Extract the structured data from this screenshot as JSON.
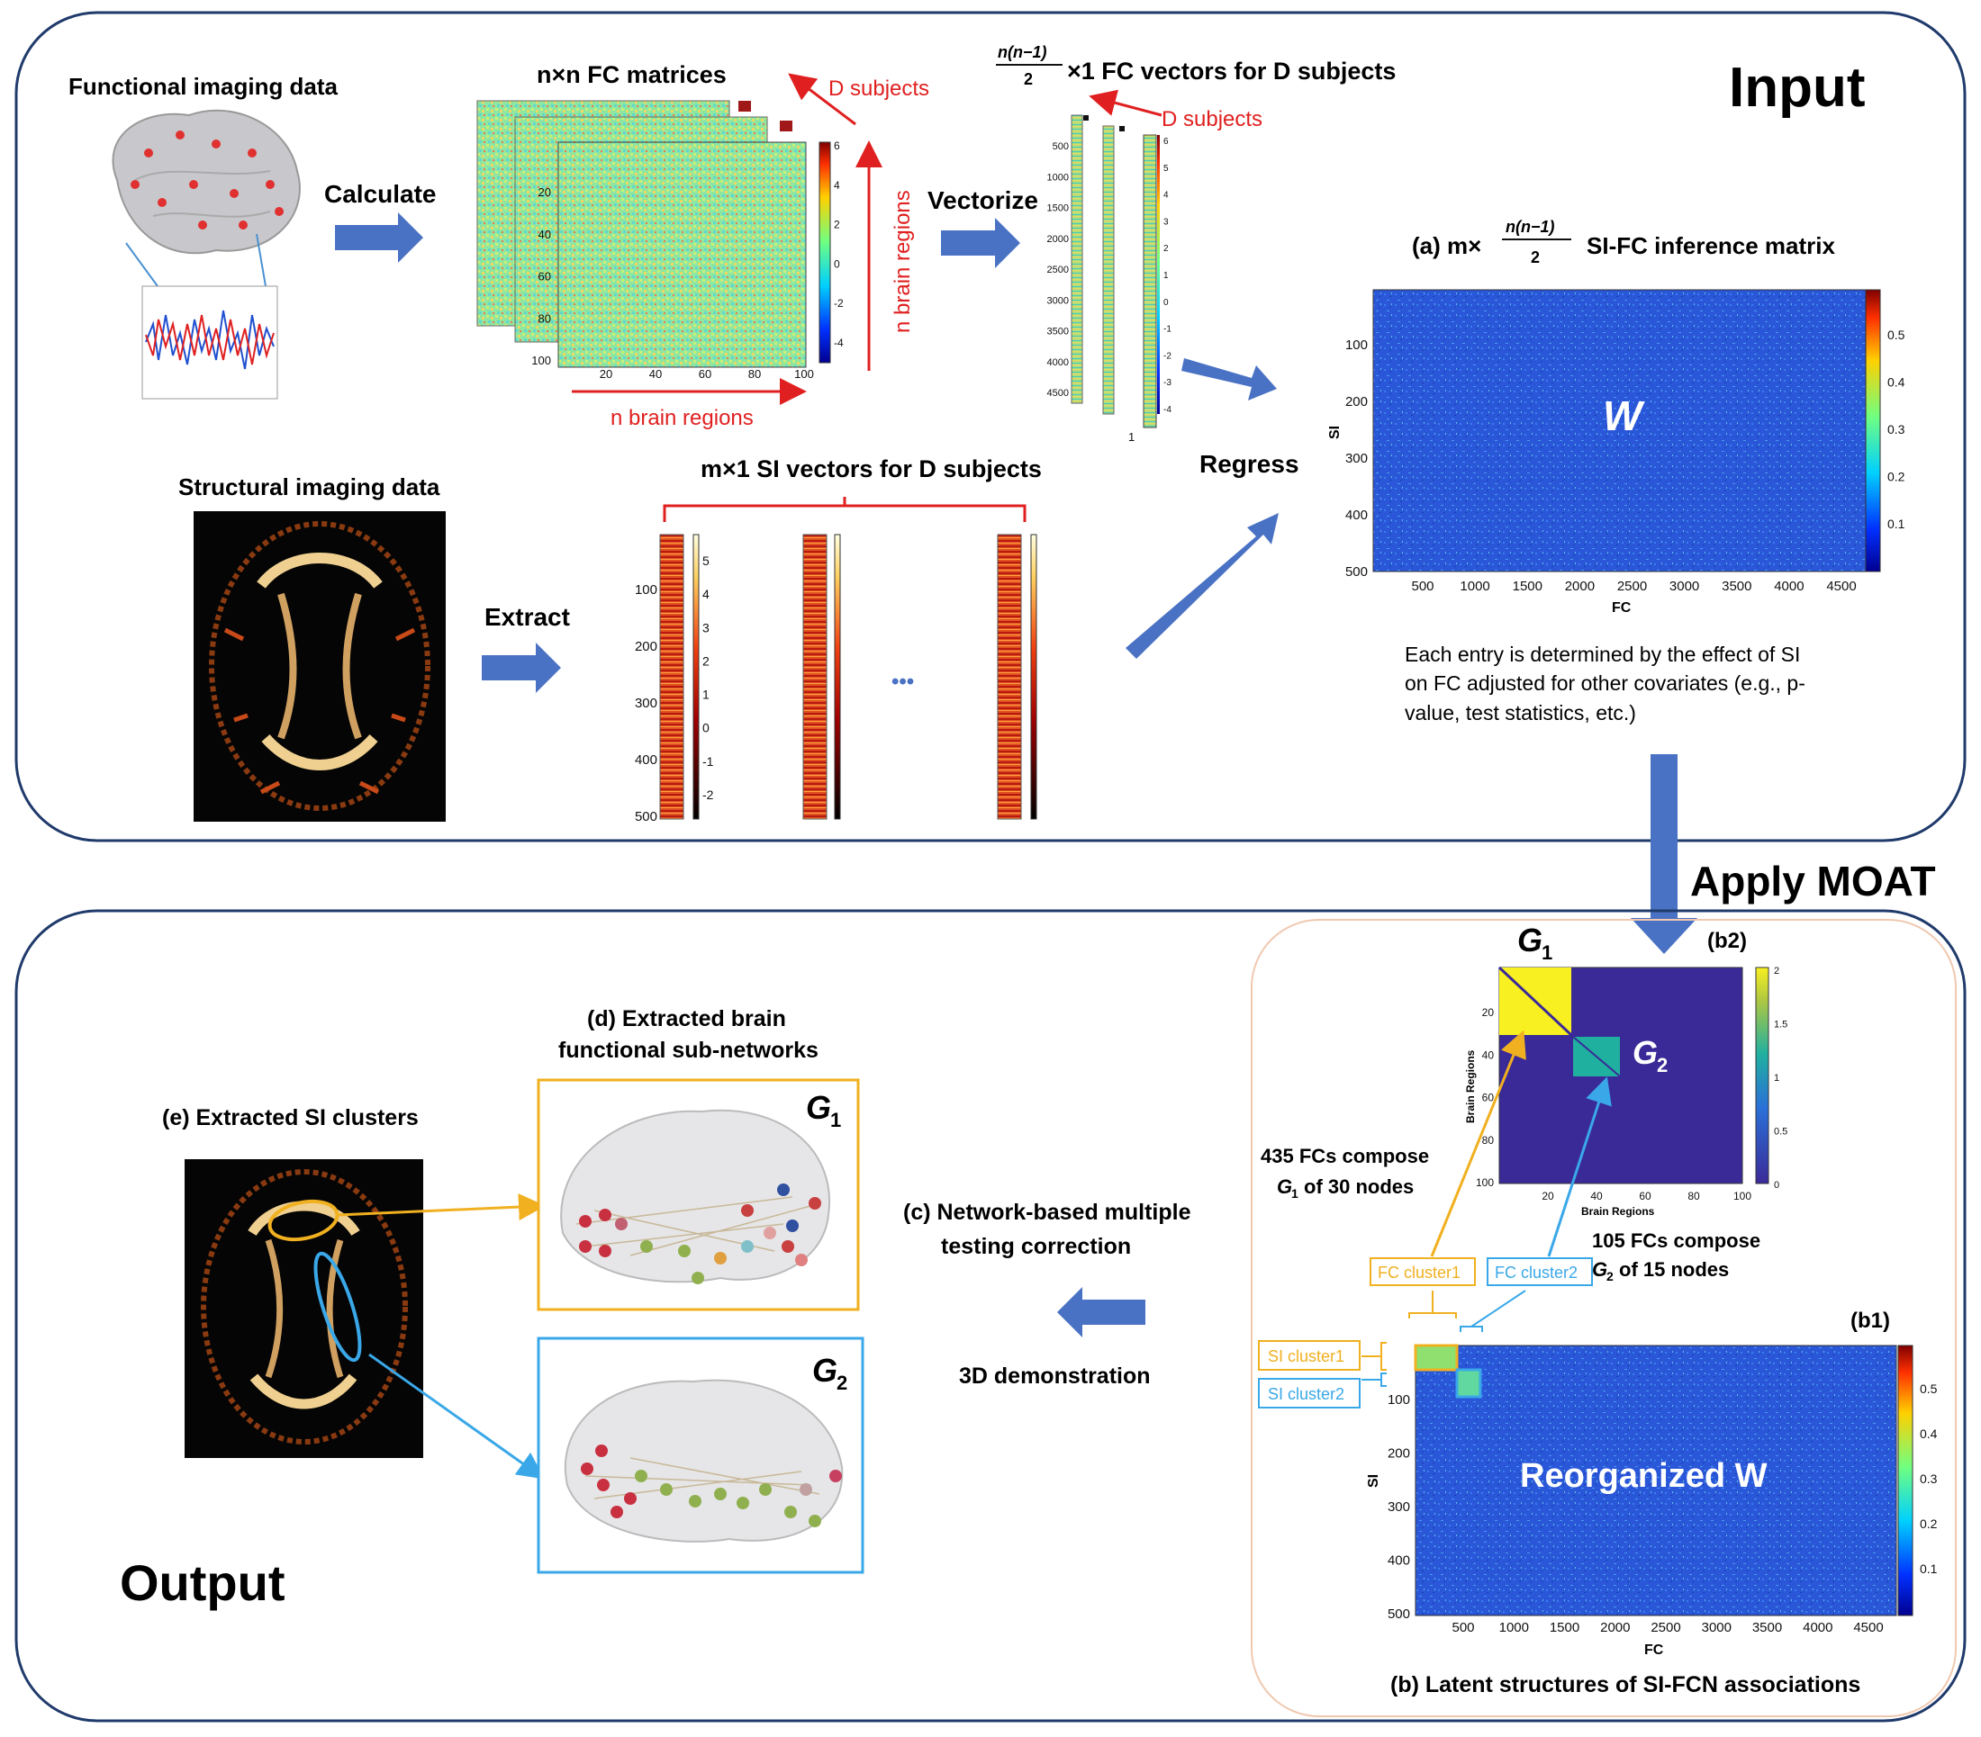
{
  "input_panel": {
    "title": "Input",
    "functional_label": "Functional imaging data",
    "calculate_label": "Calculate",
    "fc_matrices_title": "n×n FC matrices",
    "d_subjects_1": "D subjects",
    "d_subjects_2": "D subjects",
    "n_brain_regions_h": "n brain regions",
    "n_brain_regions_v": "n brain regions",
    "vectorize_label": "Vectorize",
    "fc_vectors_title_suffix": "×1 FC vectors for D subjects",
    "fc_vectors_frac_num": "n(n−1)",
    "fc_vectors_frac_den": "2",
    "structural_label": "Structural imaging data",
    "extract_label": "Extract",
    "si_vectors_title": "m×1 SI vectors for D subjects",
    "ellipsis": "•••",
    "regress_label": "Regress",
    "inference_title_prefix": "(a)  m×",
    "inference_frac_num": "n(n−1)",
    "inference_frac_den": "2",
    "inference_title_suffix": "SI-FC inference matrix",
    "w_label": "W",
    "si_axis": "SI",
    "fc_axis": "FC",
    "caption_lines": [
      "Each entry is determined by the effect of SI",
      "on FC adjusted for other covariates (e.g., p-",
      "value, test statistics, etc.)"
    ],
    "fc_matrix_ticks_y": [
      "20",
      "40",
      "60",
      "80",
      "100"
    ],
    "fc_matrix_ticks_x": [
      "20",
      "40",
      "60",
      "80",
      "100"
    ],
    "fc_matrix_colorbar": [
      "6",
      "4",
      "2",
      "0",
      "-2",
      "-4"
    ],
    "fc_vector_ticks": [
      "500",
      "1000",
      "1500",
      "2000",
      "2500",
      "3000",
      "3500",
      "4000",
      "4500"
    ],
    "fc_vector_colorbar": [
      "6",
      "5",
      "4",
      "3",
      "2",
      "1",
      "0",
      "-1",
      "-2",
      "-3",
      "-4"
    ],
    "si_vector_ticks": [
      "100",
      "200",
      "300",
      "400",
      "500"
    ],
    "si_vector_colorbar": [
      "5",
      "4",
      "3",
      "2",
      "1",
      "0",
      "-1",
      "-2"
    ],
    "vector_index": "1",
    "inference_ticks_y": [
      "100",
      "200",
      "300",
      "400",
      "500"
    ],
    "inference_ticks_x": [
      "500",
      "1000",
      "1500",
      "2000",
      "2500",
      "3000",
      "3500",
      "4000",
      "4500"
    ],
    "inference_colorbar": [
      "0.5",
      "0.4",
      "0.3",
      "0.2",
      "0.1"
    ]
  },
  "apply_label": "Apply MOAT",
  "output_panel": {
    "title": "Output",
    "si_clusters_title": "(e) Extracted SI clusters",
    "subnetworks_title_1": "(d) Extracted brain",
    "subnetworks_title_2": "functional sub-networks",
    "g1": "G",
    "g2": "G",
    "g1_sub": "1",
    "g2_sub": "2",
    "correction_1": "(c) Network-based multiple",
    "correction_2": "testing correction",
    "demo_label": "3D demonstration",
    "b2_label": "(b2)",
    "b1_label": "(b1)",
    "brain_regions": "Brain Regions",
    "b2_ticks_y": [
      "20",
      "40",
      "60",
      "80",
      "100"
    ],
    "b2_ticks_x": [
      "20",
      "40",
      "60",
      "80",
      "100"
    ],
    "b2_colorbar": [
      "2",
      "1.5",
      "1",
      "0.5",
      "0"
    ],
    "fc435_line1": "435 FCs compose",
    "fc435_line2_suffix": "of 30 nodes",
    "fc105_line1": "105 FCs compose",
    "fc105_line2_suffix": "of 15 nodes",
    "fc_cluster1": "FC cluster1",
    "fc_cluster2": "FC cluster2",
    "si_cluster1": "SI cluster1",
    "si_cluster2": "SI cluster2",
    "reorganized_label": "Reorganized W",
    "si_axis": "SI",
    "fc_axis": "FC",
    "b1_ticks_y": [
      "100",
      "200",
      "300",
      "400",
      "500"
    ],
    "b1_ticks_x": [
      "500",
      "1000",
      "1500",
      "2000",
      "2500",
      "3000",
      "3500",
      "4000",
      "4500"
    ],
    "b1_colorbar": [
      "0.5",
      "0.4",
      "0.3",
      "0.2",
      "0.1"
    ],
    "latent_title": "(b) Latent structures of SI-FCN associations"
  },
  "colors": {
    "arrow_blue": "#4a72c4",
    "red": "#e02020",
    "orange": "#f0b020",
    "cyan": "#3aa8e8",
    "panel_border": "#1f3a6b"
  }
}
